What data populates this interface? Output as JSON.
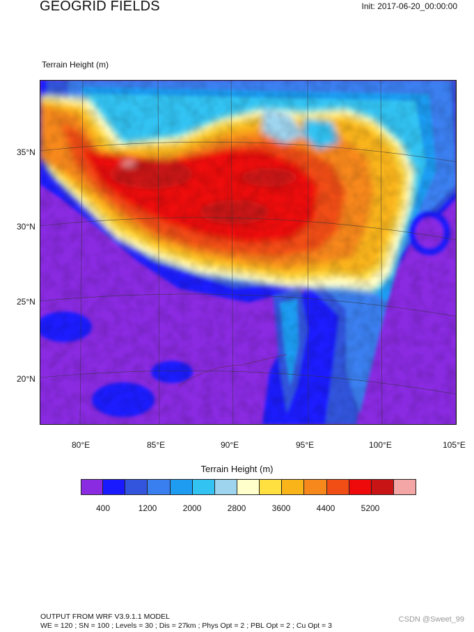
{
  "header": {
    "title": "GEOGRID FIELDS",
    "init": "Init: 2017-06-20_00:00:00"
  },
  "field_label": "Terrain Height   (m)",
  "map": {
    "lat_labels": [
      "35°N",
      "30°N",
      "25°N",
      "20°N"
    ],
    "lon_labels": [
      "80°E",
      "85°E",
      "90°E",
      "95°E",
      "100°E",
      "105°E"
    ]
  },
  "colorbar": {
    "title": "Terrain Height  (m)",
    "colors": [
      "#8a2be2",
      "#1a1aff",
      "#3355dd",
      "#3a7ff0",
      "#1e9cf2",
      "#33c3f3",
      "#9fd4ef",
      "#ffffcc",
      "#ffe040",
      "#f9b41a",
      "#f7881c",
      "#f04e14",
      "#ee0a0a",
      "#c81414",
      "#f4a5a5"
    ],
    "labels": [
      "400",
      "1200",
      "2000",
      "2800",
      "3600",
      "4400",
      "5200"
    ]
  },
  "footer": {
    "line1": "OUTPUT FROM WRF V3.9.1.1 MODEL",
    "line2": "WE = 120 ; SN = 100 ; Levels = 30 ; Dis = 27km ; Phys Opt = 2 ; PBL Opt = 2 ; Cu Opt = 3"
  },
  "watermark": "CSDN @Sweet_99"
}
